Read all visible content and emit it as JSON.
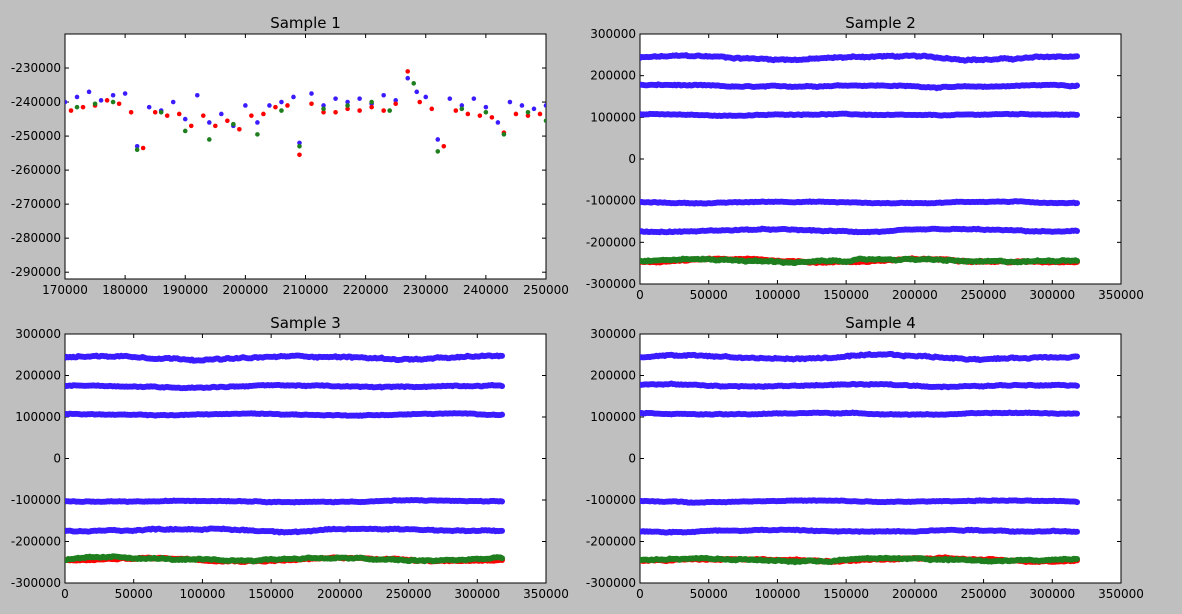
{
  "colors": {
    "background": "#bfbfbf",
    "plot_area": "#ffffff",
    "blue_series": "#3a1cff",
    "red_series": "#ff0000",
    "green_series": "#1f7f1f"
  },
  "chart_data": [
    {
      "type": "scatter",
      "title": "Sample 1",
      "xlabel": "",
      "ylabel": "",
      "xlim": [
        170000,
        250000
      ],
      "ylim": [
        -292000,
        -220000
      ],
      "xticks": [
        170000,
        180000,
        190000,
        200000,
        210000,
        220000,
        230000,
        240000,
        250000
      ],
      "yticks": [
        -290000,
        -280000,
        -270000,
        -260000,
        -250000,
        -240000,
        -230000
      ],
      "xtick_labels": [
        "170000",
        "180000",
        "190000",
        "200000",
        "210000",
        "220000",
        "230000",
        "240000",
        "250000"
      ],
      "ytick_labels": [
        "-290000",
        "-280000",
        "-270000",
        "-260000",
        "-250000",
        "-240000",
        "-230000"
      ],
      "grid": false,
      "series": [
        {
          "color": "blue",
          "points": [
            [
              170000,
              -240000
            ],
            [
              172000,
              -238500
            ],
            [
              174000,
              -237000
            ],
            [
              176000,
              -239500
            ],
            [
              178000,
              -238000
            ],
            [
              180000,
              -237500
            ],
            [
              182000,
              -253000
            ],
            [
              184000,
              -241500
            ],
            [
              186000,
              -242500
            ],
            [
              188000,
              -240000
            ],
            [
              190000,
              -245000
            ],
            [
              192000,
              -238000
            ],
            [
              194000,
              -246000
            ],
            [
              196000,
              -243500
            ],
            [
              198000,
              -247000
            ],
            [
              200000,
              -241000
            ],
            [
              202000,
              -246000
            ],
            [
              204000,
              -241000
            ],
            [
              206000,
              -240000
            ],
            [
              208000,
              -238500
            ],
            [
              209000,
              -252000
            ],
            [
              211000,
              -237500
            ],
            [
              213000,
              -241000
            ],
            [
              215000,
              -239000
            ],
            [
              217000,
              -240000
            ],
            [
              219000,
              -239000
            ],
            [
              221000,
              -240500
            ],
            [
              223000,
              -238000
            ],
            [
              225000,
              -239500
            ],
            [
              227000,
              -233000
            ],
            [
              228500,
              -237000
            ],
            [
              230000,
              -238500
            ],
            [
              232000,
              -251000
            ],
            [
              234000,
              -239000
            ],
            [
              236000,
              -241000
            ],
            [
              238000,
              -239000
            ],
            [
              240000,
              -241500
            ],
            [
              242000,
              -246000
            ],
            [
              244000,
              -240000
            ],
            [
              246000,
              -241000
            ],
            [
              248000,
              -242000
            ],
            [
              250000,
              -241000
            ]
          ]
        },
        {
          "color": "red",
          "points": [
            [
              171000,
              -242500
            ],
            [
              173000,
              -241500
            ],
            [
              175000,
              -241000
            ],
            [
              177000,
              -239500
            ],
            [
              179000,
              -240500
            ],
            [
              181000,
              -243000
            ],
            [
              183000,
              -253500
            ],
            [
              185000,
              -243000
            ],
            [
              187000,
              -244000
            ],
            [
              189000,
              -243500
            ],
            [
              191000,
              -247000
            ],
            [
              193000,
              -244000
            ],
            [
              195000,
              -247000
            ],
            [
              197000,
              -245500
            ],
            [
              199000,
              -248000
            ],
            [
              201000,
              -244000
            ],
            [
              203000,
              -243500
            ],
            [
              205000,
              -241500
            ],
            [
              207000,
              -241000
            ],
            [
              209000,
              -255500
            ],
            [
              211000,
              -240500
            ],
            [
              213000,
              -243000
            ],
            [
              215000,
              -243000
            ],
            [
              217000,
              -242000
            ],
            [
              219000,
              -242500
            ],
            [
              221000,
              -241500
            ],
            [
              223000,
              -242500
            ],
            [
              225000,
              -240500
            ],
            [
              227000,
              -231000
            ],
            [
              229000,
              -240000
            ],
            [
              231000,
              -242000
            ],
            [
              233000,
              -253000
            ],
            [
              235000,
              -242500
            ],
            [
              237000,
              -243500
            ],
            [
              239000,
              -244000
            ],
            [
              241000,
              -244500
            ],
            [
              243000,
              -249000
            ],
            [
              245000,
              -243500
            ],
            [
              247000,
              -244000
            ],
            [
              249000,
              -243500
            ]
          ]
        },
        {
          "color": "green",
          "points": [
            [
              172000,
              -241500
            ],
            [
              175000,
              -240500
            ],
            [
              178000,
              -240000
            ],
            [
              182000,
              -254000
            ],
            [
              186000,
              -243000
            ],
            [
              190000,
              -248500
            ],
            [
              194000,
              -251000
            ],
            [
              198000,
              -246500
            ],
            [
              202000,
              -249500
            ],
            [
              206000,
              -242500
            ],
            [
              209000,
              -253000
            ],
            [
              213000,
              -242000
            ],
            [
              217000,
              -241000
            ],
            [
              221000,
              -240000
            ],
            [
              224000,
              -242500
            ],
            [
              228000,
              -234500
            ],
            [
              232000,
              -254500
            ],
            [
              236000,
              -242000
            ],
            [
              240000,
              -243000
            ],
            [
              243000,
              -249500
            ],
            [
              247000,
              -243000
            ],
            [
              250000,
              -245500
            ]
          ]
        }
      ]
    },
    {
      "type": "scatter",
      "title": "Sample 2",
      "xlabel": "",
      "ylabel": "",
      "xlim": [
        0,
        350000
      ],
      "ylim": [
        -300000,
        300000
      ],
      "xticks": [
        0,
        50000,
        100000,
        150000,
        200000,
        250000,
        300000,
        350000
      ],
      "yticks": [
        -300000,
        -200000,
        -100000,
        0,
        100000,
        200000,
        300000
      ],
      "xtick_labels": [
        "0",
        "50000",
        "100000",
        "150000",
        "200000",
        "250000",
        "300000",
        "350000"
      ],
      "ytick_labels": [
        "-300000",
        "-200000",
        "-100000",
        "0",
        "100000",
        "200000",
        "300000"
      ],
      "grid": false,
      "x_extent": [
        0,
        318000
      ],
      "bands": [
        {
          "color": "blue",
          "level": 243000,
          "spread": 6000
        },
        {
          "color": "blue",
          "level": 175000,
          "spread": 4000
        },
        {
          "color": "blue",
          "level": 106000,
          "spread": 3000
        },
        {
          "color": "blue",
          "level": -104000,
          "spread": 3000
        },
        {
          "color": "blue",
          "level": -172000,
          "spread": 4000
        },
        {
          "color": "red",
          "level": -244000,
          "spread": 5000
        },
        {
          "color": "green",
          "level": -244000,
          "spread": 6000
        }
      ]
    },
    {
      "type": "scatter",
      "title": "Sample 3",
      "xlabel": "",
      "ylabel": "",
      "xlim": [
        0,
        350000
      ],
      "ylim": [
        -300000,
        300000
      ],
      "xticks": [
        0,
        50000,
        100000,
        150000,
        200000,
        250000,
        300000,
        350000
      ],
      "yticks": [
        -300000,
        -200000,
        -100000,
        0,
        100000,
        200000,
        300000
      ],
      "xtick_labels": [
        "0",
        "50000",
        "100000",
        "150000",
        "200000",
        "250000",
        "300000",
        "350000"
      ],
      "ytick_labels": [
        "-300000",
        "-200000",
        "-100000",
        "0",
        "100000",
        "200000",
        "300000"
      ],
      "grid": false,
      "x_extent": [
        0,
        318000
      ],
      "bands": [
        {
          "color": "blue",
          "level": 243000,
          "spread": 6000
        },
        {
          "color": "blue",
          "level": 174000,
          "spread": 4000
        },
        {
          "color": "blue",
          "level": 106000,
          "spread": 3000
        },
        {
          "color": "blue",
          "level": -103000,
          "spread": 3000
        },
        {
          "color": "blue",
          "level": -172000,
          "spread": 5000
        },
        {
          "color": "red",
          "level": -243000,
          "spread": 5000
        },
        {
          "color": "green",
          "level": -243000,
          "spread": 6000
        }
      ]
    },
    {
      "type": "scatter",
      "title": "Sample 4",
      "xlabel": "",
      "ylabel": "",
      "xlim": [
        0,
        350000
      ],
      "ylim": [
        -300000,
        300000
      ],
      "xticks": [
        0,
        50000,
        100000,
        150000,
        200000,
        250000,
        300000,
        350000
      ],
      "yticks": [
        -300000,
        -200000,
        -100000,
        0,
        100000,
        200000,
        300000
      ],
      "xtick_labels": [
        "0",
        "50000",
        "100000",
        "150000",
        "200000",
        "250000",
        "300000",
        "350000"
      ],
      "ytick_labels": [
        "-300000",
        "-200000",
        "-100000",
        "0",
        "100000",
        "200000",
        "300000"
      ],
      "grid": false,
      "x_extent": [
        0,
        318000
      ],
      "bands": [
        {
          "color": "blue",
          "level": 244000,
          "spread": 6000
        },
        {
          "color": "blue",
          "level": 176000,
          "spread": 4000
        },
        {
          "color": "blue",
          "level": 108000,
          "spread": 3000
        },
        {
          "color": "blue",
          "level": -103000,
          "spread": 3000
        },
        {
          "color": "blue",
          "level": -174000,
          "spread": 4000
        },
        {
          "color": "red",
          "level": -244000,
          "spread": 5000
        },
        {
          "color": "green",
          "level": -244000,
          "spread": 6000
        }
      ]
    }
  ]
}
